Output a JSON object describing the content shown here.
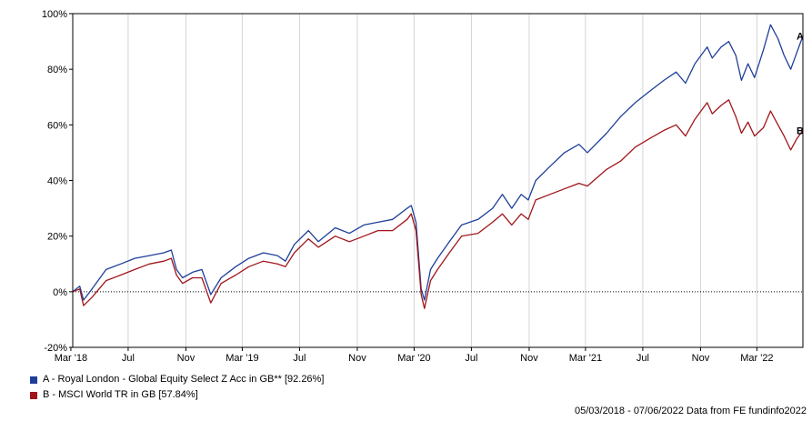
{
  "chart_data": {
    "type": "line",
    "x_tick_labels": [
      "Mar '18",
      "Jul",
      "Nov",
      "Mar '19",
      "Jul",
      "Nov",
      "Mar '20",
      "Jul",
      "Nov",
      "Mar '21",
      "Jul",
      "Nov",
      "Mar '22"
    ],
    "x_ticks": [
      "2018-03",
      "2018-07",
      "2018-11",
      "2019-03",
      "2019-07",
      "2019-11",
      "2020-03",
      "2020-07",
      "2020-11",
      "2021-03",
      "2021-07",
      "2021-11",
      "2022-03"
    ],
    "x_range": [
      "2018-03-05",
      "2022-06-07"
    ],
    "y_tick_labels": [
      "-20%",
      "0%",
      "20%",
      "40%",
      "60%",
      "80%",
      "100%"
    ],
    "y_ticks": [
      -20,
      0,
      20,
      40,
      60,
      80,
      100
    ],
    "ylim": [
      -20,
      100
    ],
    "grid": "vertical",
    "series": [
      {
        "name": "A - Royal London - Global Equity Select Z Acc in GB** [92.26%]",
        "end_label": "A",
        "color": "#1f3f99",
        "points": [
          [
            "2018-03-05",
            0
          ],
          [
            "2018-03-20",
            2
          ],
          [
            "2018-03-28",
            -3
          ],
          [
            "2018-04-15",
            1
          ],
          [
            "2018-05-15",
            8
          ],
          [
            "2018-06-15",
            10
          ],
          [
            "2018-07-15",
            12
          ],
          [
            "2018-08-15",
            13
          ],
          [
            "2018-09-15",
            14
          ],
          [
            "2018-10-01",
            15
          ],
          [
            "2018-10-12",
            8
          ],
          [
            "2018-10-25",
            5
          ],
          [
            "2018-11-15",
            7
          ],
          [
            "2018-12-05",
            8
          ],
          [
            "2018-12-24",
            -1
          ],
          [
            "2019-01-15",
            5
          ],
          [
            "2019-02-15",
            9
          ],
          [
            "2019-03-15",
            12
          ],
          [
            "2019-04-15",
            14
          ],
          [
            "2019-05-15",
            13
          ],
          [
            "2019-06-01",
            11
          ],
          [
            "2019-06-20",
            17
          ],
          [
            "2019-07-20",
            22
          ],
          [
            "2019-08-10",
            18
          ],
          [
            "2019-09-15",
            23
          ],
          [
            "2019-10-15",
            21
          ],
          [
            "2019-11-15",
            24
          ],
          [
            "2019-12-15",
            25
          ],
          [
            "2020-01-15",
            26
          ],
          [
            "2020-02-15",
            30
          ],
          [
            "2020-02-24",
            31
          ],
          [
            "2020-03-05",
            25
          ],
          [
            "2020-03-16",
            1
          ],
          [
            "2020-03-23",
            -3
          ],
          [
            "2020-04-05",
            8
          ],
          [
            "2020-04-20",
            12
          ],
          [
            "2020-05-15",
            18
          ],
          [
            "2020-06-10",
            24
          ],
          [
            "2020-07-15",
            26
          ],
          [
            "2020-08-15",
            30
          ],
          [
            "2020-09-05",
            35
          ],
          [
            "2020-09-25",
            30
          ],
          [
            "2020-10-15",
            35
          ],
          [
            "2020-10-30",
            33
          ],
          [
            "2020-11-15",
            40
          ],
          [
            "2020-12-15",
            45
          ],
          [
            "2021-01-15",
            50
          ],
          [
            "2021-02-15",
            53
          ],
          [
            "2021-03-05",
            50
          ],
          [
            "2021-04-15",
            57
          ],
          [
            "2021-05-15",
            63
          ],
          [
            "2021-06-15",
            68
          ],
          [
            "2021-07-15",
            72
          ],
          [
            "2021-08-15",
            76
          ],
          [
            "2021-09-10",
            79
          ],
          [
            "2021-09-30",
            75
          ],
          [
            "2021-10-20",
            82
          ],
          [
            "2021-11-15",
            88
          ],
          [
            "2021-11-26",
            84
          ],
          [
            "2021-12-15",
            88
          ],
          [
            "2021-12-31",
            90
          ],
          [
            "2022-01-15",
            85
          ],
          [
            "2022-01-27",
            76
          ],
          [
            "2022-02-10",
            82
          ],
          [
            "2022-02-24",
            77
          ],
          [
            "2022-03-15",
            87
          ],
          [
            "2022-03-30",
            96
          ],
          [
            "2022-04-15",
            91
          ],
          [
            "2022-04-28",
            85
          ],
          [
            "2022-05-12",
            80
          ],
          [
            "2022-05-25",
            86
          ],
          [
            "2022-06-07",
            92
          ]
        ]
      },
      {
        "name": "B - MSCI World TR in GB [57.84%]",
        "end_label": "B",
        "color": "#a0161b",
        "points": [
          [
            "2018-03-05",
            0
          ],
          [
            "2018-03-20",
            1
          ],
          [
            "2018-03-28",
            -5
          ],
          [
            "2018-04-15",
            -2
          ],
          [
            "2018-05-15",
            4
          ],
          [
            "2018-06-15",
            6
          ],
          [
            "2018-07-15",
            8
          ],
          [
            "2018-08-15",
            10
          ],
          [
            "2018-09-15",
            11
          ],
          [
            "2018-10-01",
            12
          ],
          [
            "2018-10-12",
            6
          ],
          [
            "2018-10-25",
            3
          ],
          [
            "2018-11-15",
            5
          ],
          [
            "2018-12-05",
            5
          ],
          [
            "2018-12-24",
            -4
          ],
          [
            "2019-01-15",
            3
          ],
          [
            "2019-02-15",
            6
          ],
          [
            "2019-03-15",
            9
          ],
          [
            "2019-04-15",
            11
          ],
          [
            "2019-05-15",
            10
          ],
          [
            "2019-06-01",
            9
          ],
          [
            "2019-06-20",
            14
          ],
          [
            "2019-07-20",
            19
          ],
          [
            "2019-08-10",
            16
          ],
          [
            "2019-09-15",
            20
          ],
          [
            "2019-10-15",
            18
          ],
          [
            "2019-11-15",
            20
          ],
          [
            "2019-12-15",
            22
          ],
          [
            "2020-01-15",
            22
          ],
          [
            "2020-02-15",
            26
          ],
          [
            "2020-02-24",
            28
          ],
          [
            "2020-03-05",
            22
          ],
          [
            "2020-03-16",
            -1
          ],
          [
            "2020-03-23",
            -6
          ],
          [
            "2020-04-05",
            4
          ],
          [
            "2020-04-20",
            8
          ],
          [
            "2020-05-15",
            14
          ],
          [
            "2020-06-10",
            20
          ],
          [
            "2020-07-15",
            21
          ],
          [
            "2020-08-15",
            25
          ],
          [
            "2020-09-05",
            28
          ],
          [
            "2020-09-25",
            24
          ],
          [
            "2020-10-15",
            28
          ],
          [
            "2020-10-30",
            26
          ],
          [
            "2020-11-15",
            33
          ],
          [
            "2020-12-15",
            35
          ],
          [
            "2021-01-15",
            37
          ],
          [
            "2021-02-15",
            39
          ],
          [
            "2021-03-05",
            38
          ],
          [
            "2021-04-15",
            44
          ],
          [
            "2021-05-15",
            47
          ],
          [
            "2021-06-15",
            52
          ],
          [
            "2021-07-15",
            55
          ],
          [
            "2021-08-15",
            58
          ],
          [
            "2021-09-10",
            60
          ],
          [
            "2021-09-30",
            56
          ],
          [
            "2021-10-20",
            62
          ],
          [
            "2021-11-15",
            68
          ],
          [
            "2021-11-26",
            64
          ],
          [
            "2021-12-15",
            67
          ],
          [
            "2021-12-31",
            69
          ],
          [
            "2022-01-15",
            63
          ],
          [
            "2022-01-27",
            57
          ],
          [
            "2022-02-10",
            61
          ],
          [
            "2022-02-24",
            56
          ],
          [
            "2022-03-15",
            59
          ],
          [
            "2022-03-30",
            65
          ],
          [
            "2022-04-15",
            60
          ],
          [
            "2022-04-28",
            56
          ],
          [
            "2022-05-12",
            51
          ],
          [
            "2022-05-25",
            55
          ],
          [
            "2022-06-07",
            58
          ]
        ]
      }
    ]
  },
  "footer": "05/03/2018 - 07/06/2022 Data from FE fundinfo2022"
}
